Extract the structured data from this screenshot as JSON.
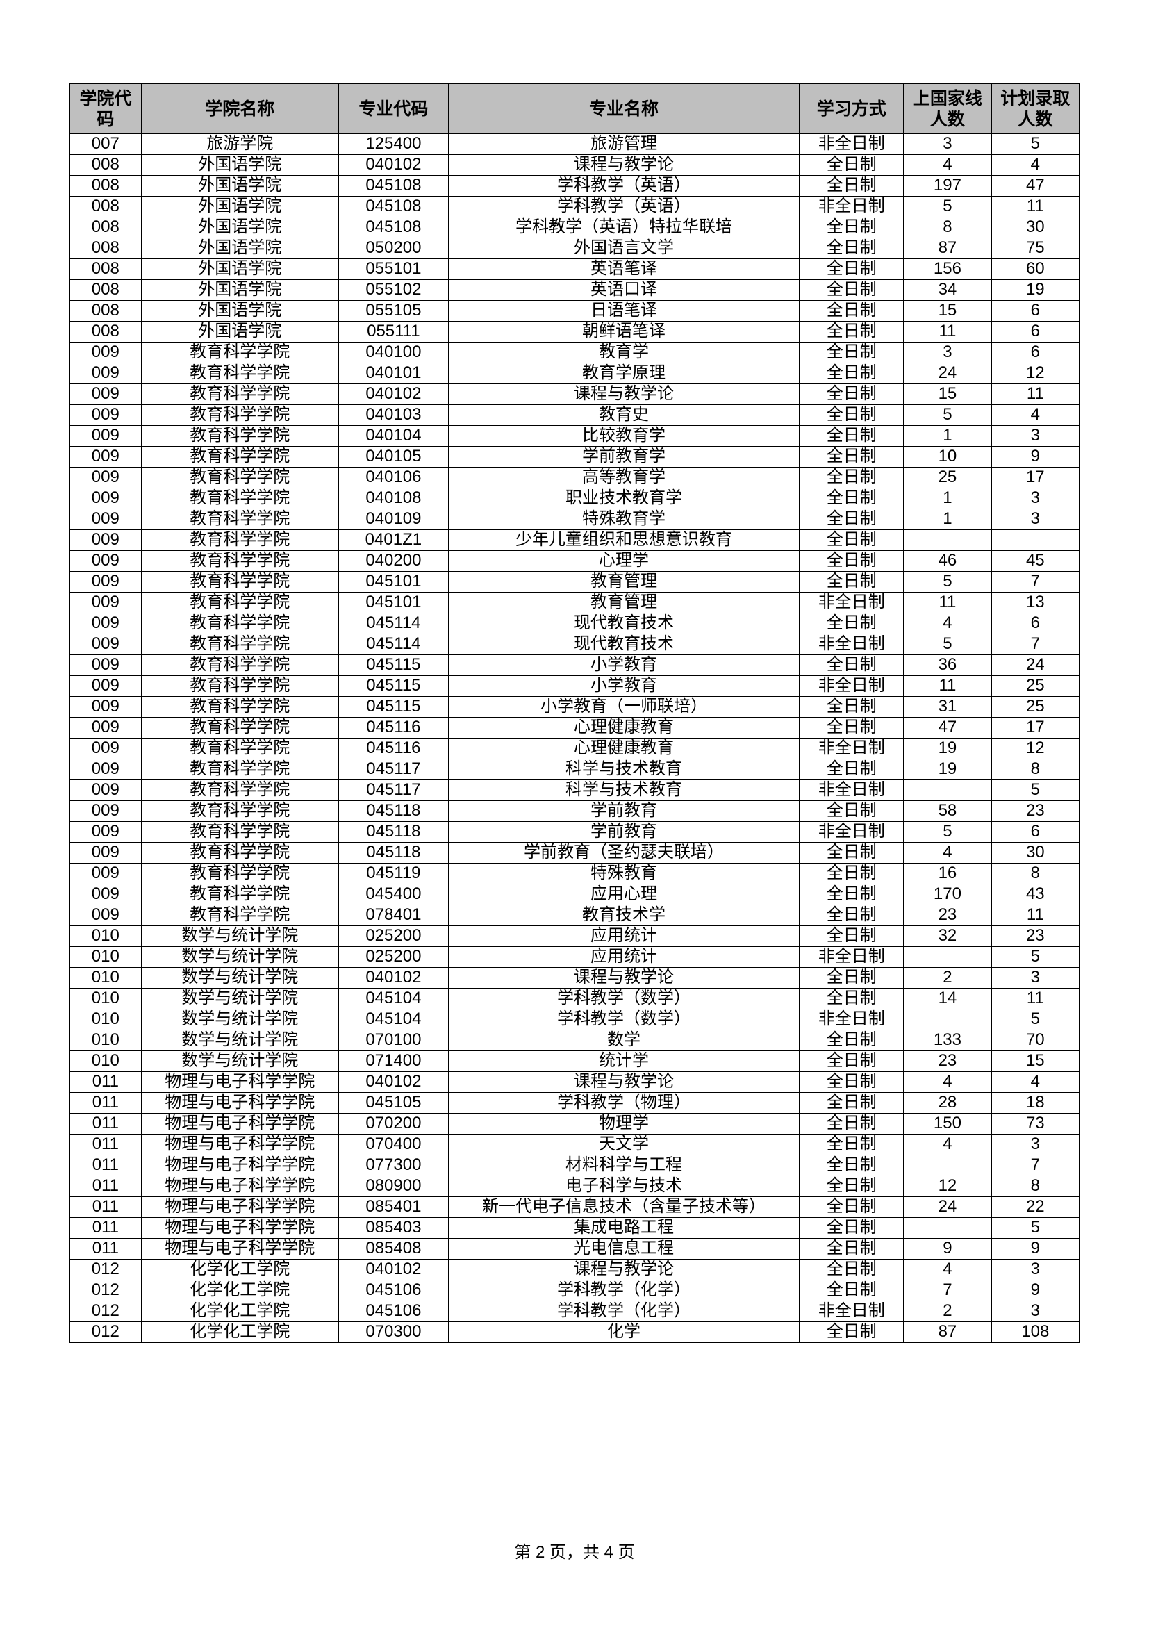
{
  "table": {
    "header_bg": "#bfbfbf",
    "border_color": "#000000",
    "columns": [
      "学院代码",
      "学院名称",
      "专业代码",
      "专业名称",
      "学习方式",
      "上国家线人数",
      "计划录取人数"
    ],
    "rows": [
      [
        "007",
        "旅游学院",
        "125400",
        "旅游管理",
        "非全日制",
        "3",
        "5"
      ],
      [
        "008",
        "外国语学院",
        "040102",
        "课程与教学论",
        "全日制",
        "4",
        "4"
      ],
      [
        "008",
        "外国语学院",
        "045108",
        "学科教学（英语）",
        "全日制",
        "197",
        "47"
      ],
      [
        "008",
        "外国语学院",
        "045108",
        "学科教学（英语）",
        "非全日制",
        "5",
        "11"
      ],
      [
        "008",
        "外国语学院",
        "045108",
        "学科教学（英语）特拉华联培",
        "全日制",
        "8",
        "30"
      ],
      [
        "008",
        "外国语学院",
        "050200",
        "外国语言文学",
        "全日制",
        "87",
        "75"
      ],
      [
        "008",
        "外国语学院",
        "055101",
        "英语笔译",
        "全日制",
        "156",
        "60"
      ],
      [
        "008",
        "外国语学院",
        "055102",
        "英语口译",
        "全日制",
        "34",
        "19"
      ],
      [
        "008",
        "外国语学院",
        "055105",
        "日语笔译",
        "全日制",
        "15",
        "6"
      ],
      [
        "008",
        "外国语学院",
        "055111",
        "朝鲜语笔译",
        "全日制",
        "11",
        "6"
      ],
      [
        "009",
        "教育科学学院",
        "040100",
        "教育学",
        "全日制",
        "3",
        "6"
      ],
      [
        "009",
        "教育科学学院",
        "040101",
        "教育学原理",
        "全日制",
        "24",
        "12"
      ],
      [
        "009",
        "教育科学学院",
        "040102",
        "课程与教学论",
        "全日制",
        "15",
        "11"
      ],
      [
        "009",
        "教育科学学院",
        "040103",
        "教育史",
        "全日制",
        "5",
        "4"
      ],
      [
        "009",
        "教育科学学院",
        "040104",
        "比较教育学",
        "全日制",
        "1",
        "3"
      ],
      [
        "009",
        "教育科学学院",
        "040105",
        "学前教育学",
        "全日制",
        "10",
        "9"
      ],
      [
        "009",
        "教育科学学院",
        "040106",
        "高等教育学",
        "全日制",
        "25",
        "17"
      ],
      [
        "009",
        "教育科学学院",
        "040108",
        "职业技术教育学",
        "全日制",
        "1",
        "3"
      ],
      [
        "009",
        "教育科学学院",
        "040109",
        "特殊教育学",
        "全日制",
        "1",
        "3"
      ],
      [
        "009",
        "教育科学学院",
        "0401Z1",
        "少年儿童组织和思想意识教育",
        "全日制",
        "",
        ""
      ],
      [
        "009",
        "教育科学学院",
        "040200",
        "心理学",
        "全日制",
        "46",
        "45"
      ],
      [
        "009",
        "教育科学学院",
        "045101",
        "教育管理",
        "全日制",
        "5",
        "7"
      ],
      [
        "009",
        "教育科学学院",
        "045101",
        "教育管理",
        "非全日制",
        "11",
        "13"
      ],
      [
        "009",
        "教育科学学院",
        "045114",
        "现代教育技术",
        "全日制",
        "4",
        "6"
      ],
      [
        "009",
        "教育科学学院",
        "045114",
        "现代教育技术",
        "非全日制",
        "5",
        "7"
      ],
      [
        "009",
        "教育科学学院",
        "045115",
        "小学教育",
        "全日制",
        "36",
        "24"
      ],
      [
        "009",
        "教育科学学院",
        "045115",
        "小学教育",
        "非全日制",
        "11",
        "25"
      ],
      [
        "009",
        "教育科学学院",
        "045115",
        "小学教育（一师联培）",
        "全日制",
        "31",
        "25"
      ],
      [
        "009",
        "教育科学学院",
        "045116",
        "心理健康教育",
        "全日制",
        "47",
        "17"
      ],
      [
        "009",
        "教育科学学院",
        "045116",
        "心理健康教育",
        "非全日制",
        "19",
        "12"
      ],
      [
        "009",
        "教育科学学院",
        "045117",
        "科学与技术教育",
        "全日制",
        "19",
        "8"
      ],
      [
        "009",
        "教育科学学院",
        "045117",
        "科学与技术教育",
        "非全日制",
        "",
        "5"
      ],
      [
        "009",
        "教育科学学院",
        "045118",
        "学前教育",
        "全日制",
        "58",
        "23"
      ],
      [
        "009",
        "教育科学学院",
        "045118",
        "学前教育",
        "非全日制",
        "5",
        "6"
      ],
      [
        "009",
        "教育科学学院",
        "045118",
        "学前教育（圣约瑟夫联培）",
        "全日制",
        "4",
        "30"
      ],
      [
        "009",
        "教育科学学院",
        "045119",
        "特殊教育",
        "全日制",
        "16",
        "8"
      ],
      [
        "009",
        "教育科学学院",
        "045400",
        "应用心理",
        "全日制",
        "170",
        "43"
      ],
      [
        "009",
        "教育科学学院",
        "078401",
        "教育技术学",
        "全日制",
        "23",
        "11"
      ],
      [
        "010",
        "数学与统计学院",
        "025200",
        "应用统计",
        "全日制",
        "32",
        "23"
      ],
      [
        "010",
        "数学与统计学院",
        "025200",
        "应用统计",
        "非全日制",
        "",
        "5"
      ],
      [
        "010",
        "数学与统计学院",
        "040102",
        "课程与教学论",
        "全日制",
        "2",
        "3"
      ],
      [
        "010",
        "数学与统计学院",
        "045104",
        "学科教学（数学）",
        "全日制",
        "14",
        "11"
      ],
      [
        "010",
        "数学与统计学院",
        "045104",
        "学科教学（数学）",
        "非全日制",
        "",
        "5"
      ],
      [
        "010",
        "数学与统计学院",
        "070100",
        "数学",
        "全日制",
        "133",
        "70"
      ],
      [
        "010",
        "数学与统计学院",
        "071400",
        "统计学",
        "全日制",
        "23",
        "15"
      ],
      [
        "011",
        "物理与电子科学学院",
        "040102",
        "课程与教学论",
        "全日制",
        "4",
        "4"
      ],
      [
        "011",
        "物理与电子科学学院",
        "045105",
        "学科教学（物理）",
        "全日制",
        "28",
        "18"
      ],
      [
        "011",
        "物理与电子科学学院",
        "070200",
        "物理学",
        "全日制",
        "150",
        "73"
      ],
      [
        "011",
        "物理与电子科学学院",
        "070400",
        "天文学",
        "全日制",
        "4",
        "3"
      ],
      [
        "011",
        "物理与电子科学学院",
        "077300",
        "材料科学与工程",
        "全日制",
        "",
        "7"
      ],
      [
        "011",
        "物理与电子科学学院",
        "080900",
        "电子科学与技术",
        "全日制",
        "12",
        "8"
      ],
      [
        "011",
        "物理与电子科学学院",
        "085401",
        "新一代电子信息技术（含量子技术等）",
        "全日制",
        "24",
        "22"
      ],
      [
        "011",
        "物理与电子科学学院",
        "085403",
        "集成电路工程",
        "全日制",
        "",
        "5"
      ],
      [
        "011",
        "物理与电子科学学院",
        "085408",
        "光电信息工程",
        "全日制",
        "9",
        "9"
      ],
      [
        "012",
        "化学化工学院",
        "040102",
        "课程与教学论",
        "全日制",
        "4",
        "3"
      ],
      [
        "012",
        "化学化工学院",
        "045106",
        "学科教学（化学）",
        "全日制",
        "7",
        "9"
      ],
      [
        "012",
        "化学化工学院",
        "045106",
        "学科教学（化学）",
        "非全日制",
        "2",
        "3"
      ],
      [
        "012",
        "化学化工学院",
        "070300",
        "化学",
        "全日制",
        "87",
        "108"
      ]
    ]
  },
  "footer": "第 2 页，共 4 页"
}
